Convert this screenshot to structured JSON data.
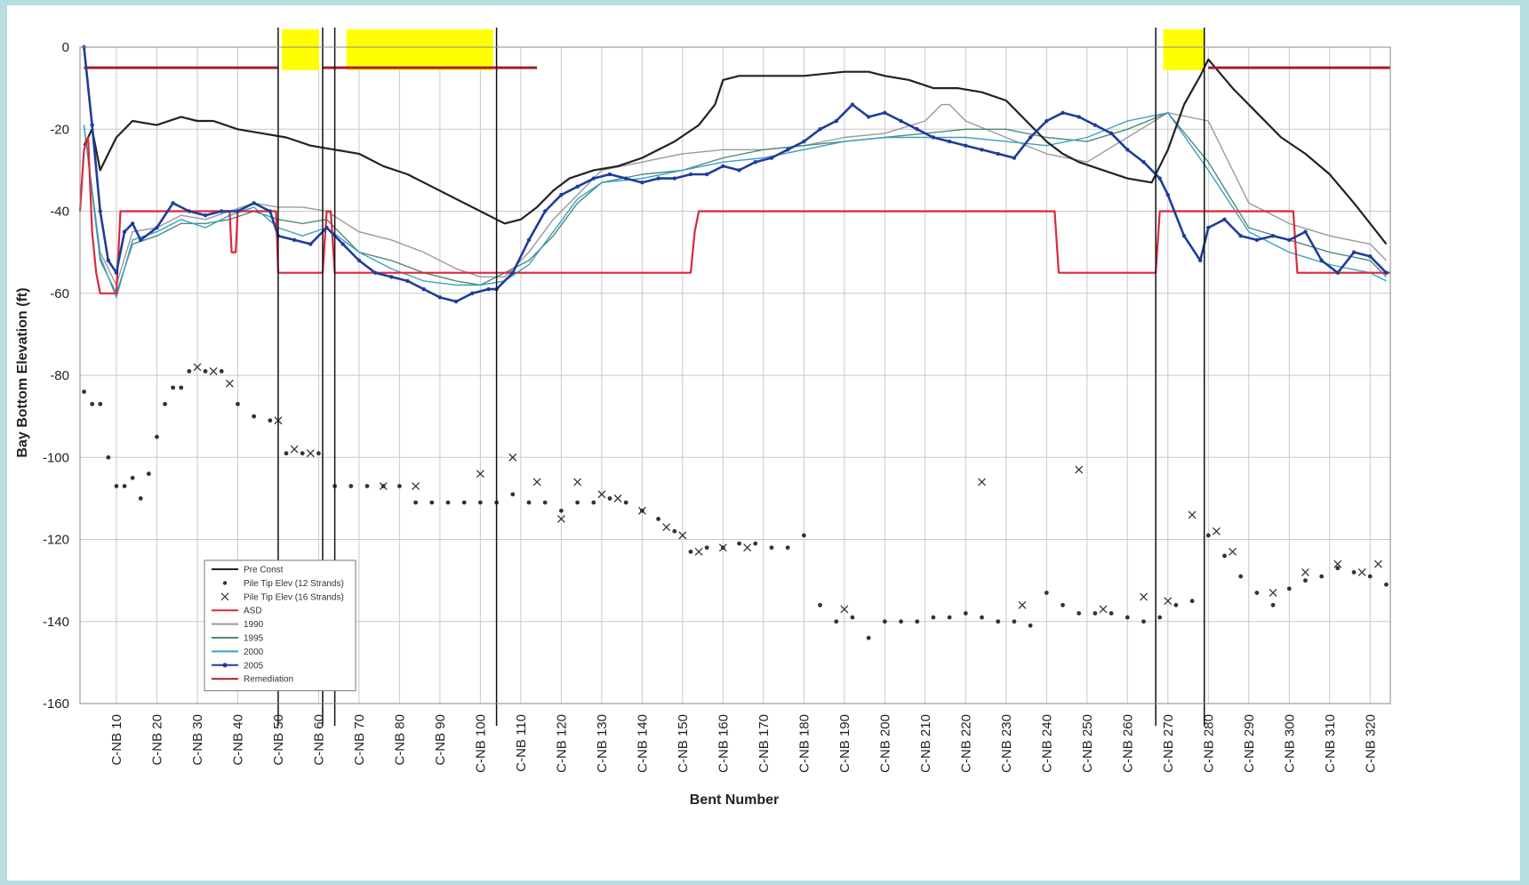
{
  "chart_data": {
    "type": "line",
    "title": "",
    "xlabel": "Bent Number",
    "ylabel": "Bay Bottom Elevation (ft)",
    "xlim": [
      1,
      325
    ],
    "ylim": [
      -160,
      0
    ],
    "grid": true,
    "legend_position": "lower-left",
    "x_ticks": [
      10,
      20,
      30,
      40,
      50,
      60,
      70,
      80,
      90,
      100,
      110,
      120,
      130,
      140,
      150,
      160,
      170,
      180,
      190,
      200,
      210,
      220,
      230,
      240,
      250,
      260,
      270,
      280,
      290,
      300,
      310,
      320
    ],
    "x_tick_labels": [
      "C-NB 10",
      "C-NB 20",
      "C-NB 30",
      "C-NB 40",
      "C-NB 50",
      "C-NB 60",
      "C-NB 70",
      "C-NB 80",
      "C-NB 90",
      "C-NB 100",
      "C-NB 110",
      "C-NB 120",
      "C-NB 130",
      "C-NB 140",
      "C-NB 150",
      "C-NB 160",
      "C-NB 170",
      "C-NB 180",
      "C-NB 190",
      "C-NB 200",
      "C-NB 210",
      "C-NB 220",
      "C-NB 230",
      "C-NB 240",
      "C-NB 250",
      "C-NB 260",
      "C-NB 270",
      "C-NB 280",
      "C-NB 290",
      "C-NB 300",
      "C-NB 310",
      "C-NB 320"
    ],
    "y_ticks": [
      0,
      -20,
      -40,
      -60,
      -80,
      -100,
      -120,
      -140,
      -160
    ],
    "highlight_ranges": [
      [
        50,
        61
      ],
      [
        66,
        104
      ],
      [
        268,
        280
      ]
    ],
    "boundary_lines": [
      50,
      61,
      64,
      104,
      267,
      279
    ],
    "series": [
      {
        "name": "Pre Const",
        "color": "#222222",
        "width": 2.2,
        "kind": "line",
        "x": [
          2,
          4,
          6,
          8,
          10,
          14,
          20,
          26,
          30,
          34,
          40,
          46,
          52,
          58,
          64,
          70,
          76,
          82,
          88,
          94,
          100,
          104,
          106,
          110,
          114,
          118,
          122,
          128,
          134,
          140,
          148,
          154,
          158,
          160,
          164,
          172,
          180,
          190,
          196,
          200,
          206,
          212,
          218,
          224,
          230,
          236,
          240,
          244,
          248,
          254,
          260,
          266,
          270,
          274,
          278,
          280,
          286,
          292,
          298,
          304,
          310,
          316,
          320,
          324
        ],
        "y": [
          -24,
          -20,
          -30,
          -26,
          -22,
          -18,
          -19,
          -17,
          -18,
          -18,
          -20,
          -21,
          -22,
          -24,
          -25,
          -26,
          -29,
          -31,
          -34,
          -37,
          -40,
          -42,
          -43,
          -42,
          -39,
          -35,
          -32,
          -30,
          -29,
          -27,
          -23,
          -19,
          -14,
          -8,
          -7,
          -7,
          -7,
          -6,
          -6,
          -7,
          -8,
          -10,
          -10,
          -11,
          -13,
          -19,
          -23,
          -26,
          -28,
          -30,
          -32,
          -33,
          -25,
          -14,
          -7,
          -3,
          -10,
          -16,
          -22,
          -26,
          -31,
          -38,
          -43,
          -48
        ]
      },
      {
        "name": "Pile Tip Elev (12 Strands)",
        "color": "#333333",
        "kind": "dots",
        "x": [
          2,
          4,
          6,
          8,
          10,
          12,
          14,
          16,
          18,
          20,
          22,
          24,
          26,
          28,
          32,
          36,
          40,
          44,
          48,
          52,
          56,
          60,
          64,
          68,
          72,
          76,
          80,
          84,
          88,
          92,
          96,
          100,
          104,
          108,
          112,
          116,
          120,
          124,
          128,
          132,
          136,
          140,
          144,
          148,
          152,
          156,
          160,
          164,
          168,
          172,
          176,
          180,
          184,
          188,
          192,
          196,
          200,
          204,
          208,
          212,
          216,
          220,
          224,
          228,
          232,
          236,
          240,
          244,
          248,
          252,
          256,
          260,
          264,
          268,
          272,
          276,
          280,
          284,
          288,
          292,
          296,
          300,
          304,
          308,
          312,
          316,
          320,
          324
        ],
        "y": [
          -84,
          -87,
          -87,
          -100,
          -107,
          -107,
          -105,
          -110,
          -104,
          -95,
          -87,
          -83,
          -83,
          -79,
          -79,
          -79,
          -87,
          -90,
          -91,
          -99,
          -99,
          -99,
          -107,
          -107,
          -107,
          -107,
          -107,
          -111,
          -111,
          -111,
          -111,
          -111,
          -111,
          -109,
          -111,
          -111,
          -113,
          -111,
          -111,
          -110,
          -111,
          -113,
          -115,
          -118,
          -123,
          -122,
          -122,
          -121,
          -121,
          -122,
          -122,
          -119,
          -136,
          -140,
          -139,
          -144,
          -140,
          -140,
          -140,
          -139,
          -139,
          -138,
          -139,
          -140,
          -140,
          -141,
          -133,
          -136,
          -138,
          -138,
          -138,
          -139,
          -140,
          -139,
          -136,
          -135,
          -119,
          -124,
          -129,
          -133,
          -136,
          -132,
          -130,
          -129,
          -127,
          -128,
          -129,
          -131
        ]
      },
      {
        "name": "Pile Tip Elev (16 Strands)",
        "color": "#333333",
        "kind": "cross",
        "x": [
          30,
          34,
          38,
          50,
          54,
          58,
          76,
          84,
          100,
          108,
          114,
          120,
          124,
          130,
          134,
          140,
          146,
          150,
          154,
          160,
          166,
          190,
          224,
          234,
          248,
          254,
          264,
          270,
          276,
          282,
          286,
          296,
          304,
          312,
          318,
          322
        ],
        "y": [
          -78,
          -79,
          -82,
          -91,
          -98,
          -99,
          -107,
          -107,
          -104,
          -100,
          -106,
          -115,
          -106,
          -109,
          -110,
          -113,
          -117,
          -119,
          -123,
          -122,
          -122,
          -137,
          -106,
          -136,
          -103,
          -137,
          -134,
          -135,
          -114,
          -118,
          -123,
          -133,
          -128,
          -126,
          -128,
          -126
        ]
      },
      {
        "name": "ASD",
        "color": "#d9283c",
        "width": 2.2,
        "kind": "step",
        "x": [
          1,
          2,
          3,
          4,
          5,
          6,
          7,
          8,
          10,
          11,
          38,
          38.5,
          39.5,
          40,
          49.5,
          50,
          61,
          62,
          63,
          64,
          65,
          66,
          152,
          153,
          154,
          155,
          242,
          243,
          267,
          268,
          301,
          302,
          325
        ],
        "y": [
          -40,
          -25,
          -22,
          -45,
          -55,
          -60,
          -60,
          -60,
          -60,
          -40,
          -40,
          -50,
          -50,
          -40,
          -40,
          -55,
          -55,
          -40,
          -40,
          -55,
          -55,
          -55,
          -55,
          -45,
          -40,
          -40,
          -40,
          -55,
          -55,
          -40,
          -40,
          -55,
          -55
        ]
      },
      {
        "name": "1990",
        "color": "#9a9a9a",
        "width": 1.4,
        "kind": "line",
        "x": [
          2,
          6,
          10,
          14,
          20,
          26,
          32,
          38,
          44,
          50,
          56,
          62,
          70,
          78,
          86,
          94,
          100,
          106,
          112,
          118,
          124,
          130,
          140,
          150,
          160,
          170,
          180,
          190,
          200,
          210,
          214,
          216,
          220,
          230,
          240,
          250,
          260,
          270,
          280,
          290,
          300,
          310,
          320,
          324
        ],
        "y": [
          -19,
          -50,
          -58,
          -45,
          -44,
          -41,
          -42,
          -40,
          -38,
          -39,
          -39,
          -40,
          -45,
          -47,
          -50,
          -54,
          -56,
          -56,
          -50,
          -42,
          -36,
          -30,
          -28,
          -26,
          -25,
          -25,
          -24,
          -22,
          -21,
          -18,
          -14,
          -14,
          -18,
          -22,
          -26,
          -28,
          -22,
          -16,
          -18,
          -38,
          -43,
          -46,
          -48,
          -52
        ]
      },
      {
        "name": "1995",
        "color": "#4d8a7a",
        "width": 1.4,
        "kind": "line",
        "x": [
          2,
          6,
          10,
          14,
          20,
          26,
          32,
          38,
          44,
          50,
          56,
          62,
          70,
          78,
          86,
          94,
          100,
          106,
          112,
          118,
          124,
          130,
          140,
          150,
          160,
          170,
          180,
          190,
          200,
          210,
          220,
          230,
          240,
          250,
          260,
          270,
          280,
          290,
          300,
          310,
          320,
          324
        ],
        "y": [
          -19,
          -52,
          -60,
          -48,
          -46,
          -43,
          -43,
          -42,
          -40,
          -42,
          -43,
          -42,
          -50,
          -52,
          -55,
          -57,
          -58,
          -55,
          -52,
          -46,
          -38,
          -33,
          -31,
          -30,
          -27,
          -25,
          -24,
          -23,
          -22,
          -21,
          -20,
          -20,
          -22,
          -23,
          -20,
          -16,
          -28,
          -44,
          -47,
          -50,
          -52,
          -56
        ]
      },
      {
        "name": "2000",
        "color": "#3aa0c4",
        "width": 1.4,
        "kind": "line",
        "x": [
          2,
          6,
          10,
          14,
          20,
          26,
          32,
          38,
          44,
          50,
          56,
          62,
          70,
          78,
          86,
          94,
          100,
          106,
          112,
          118,
          124,
          130,
          140,
          150,
          160,
          170,
          180,
          190,
          200,
          210,
          220,
          230,
          240,
          250,
          260,
          270,
          280,
          290,
          300,
          310,
          320,
          324
        ],
        "y": [
          -19,
          -51,
          -61,
          -47,
          -45,
          -42,
          -44,
          -41,
          -39,
          -44,
          -46,
          -44,
          -50,
          -54,
          -57,
          -58,
          -58,
          -57,
          -53,
          -45,
          -37,
          -33,
          -32,
          -30,
          -28,
          -27,
          -25,
          -23,
          -22,
          -22,
          -22,
          -23,
          -24,
          -22,
          -18,
          -16,
          -30,
          -45,
          -50,
          -53,
          -55,
          -57
        ]
      },
      {
        "name": "2005",
        "color": "#1f3d99",
        "width": 2.6,
        "kind": "line-marker",
        "x": [
          2,
          4,
          6,
          8,
          10,
          12,
          14,
          16,
          20,
          24,
          28,
          32,
          36,
          40,
          44,
          48,
          50,
          54,
          58,
          62,
          66,
          70,
          74,
          78,
          82,
          86,
          90,
          94,
          98,
          102,
          104,
          108,
          112,
          116,
          120,
          124,
          128,
          132,
          136,
          140,
          144,
          148,
          152,
          156,
          160,
          164,
          168,
          172,
          176,
          180,
          184,
          188,
          192,
          196,
          200,
          204,
          208,
          212,
          216,
          220,
          224,
          228,
          232,
          236,
          240,
          244,
          248,
          252,
          256,
          260,
          264,
          268,
          270,
          274,
          278,
          280,
          284,
          288,
          292,
          296,
          300,
          304,
          308,
          312,
          316,
          320,
          324
        ],
        "y": [
          0,
          -19,
          -40,
          -52,
          -55,
          -45,
          -43,
          -47,
          -44,
          -38,
          -40,
          -41,
          -40,
          -40,
          -38,
          -40,
          -46,
          -47,
          -48,
          -44,
          -48,
          -52,
          -55,
          -56,
          -57,
          -59,
          -61,
          -62,
          -60,
          -59,
          -59,
          -55,
          -47,
          -40,
          -36,
          -34,
          -32,
          -31,
          -32,
          -33,
          -32,
          -32,
          -31,
          -31,
          -29,
          -30,
          -28,
          -27,
          -25,
          -23,
          -20,
          -18,
          -14,
          -17,
          -16,
          -18,
          -20,
          -22,
          -23,
          -24,
          -25,
          -26,
          -27,
          -22,
          -18,
          -16,
          -17,
          -19,
          -21,
          -25,
          -28,
          -32,
          -36,
          -46,
          -52,
          -44,
          -42,
          -46,
          -47,
          -46,
          -47,
          -45,
          -52,
          -55,
          -50,
          -51,
          -55
        ]
      },
      {
        "name": "Remediation",
        "color": "#a31e2e",
        "width": 3,
        "kind": "segments",
        "segments": [
          [
            [
              2,
              -5
            ],
            [
              50,
              -5
            ]
          ],
          [
            [
              61,
              -5
            ],
            [
              114,
              -5
            ]
          ],
          [
            [
              280,
              -5
            ],
            [
              325,
              -5
            ]
          ]
        ]
      }
    ]
  },
  "legend": {
    "items": [
      {
        "label": "Pre Const",
        "color": "#222222",
        "kind": "line"
      },
      {
        "label": "Pile Tip Elev (12 Strands)",
        "color": "#333333",
        "kind": "dot"
      },
      {
        "label": "Pile Tip Elev (16 Strands)",
        "color": "#333333",
        "kind": "cross"
      },
      {
        "label": "ASD",
        "color": "#d9283c",
        "kind": "line"
      },
      {
        "label": "1990",
        "color": "#9a9a9a",
        "kind": "line"
      },
      {
        "label": "1995",
        "color": "#4d8a7a",
        "kind": "line"
      },
      {
        "label": "2000",
        "color": "#3aa0c4",
        "kind": "line"
      },
      {
        "label": "2005",
        "color": "#1f3d99",
        "kind": "line-marker"
      },
      {
        "label": "Remediation",
        "color": "#a31e2e",
        "kind": "line"
      }
    ]
  },
  "colors": {
    "highlight": "#ffff00",
    "grid": "#c8c8c8",
    "frame_bg": "#b7dde0"
  }
}
